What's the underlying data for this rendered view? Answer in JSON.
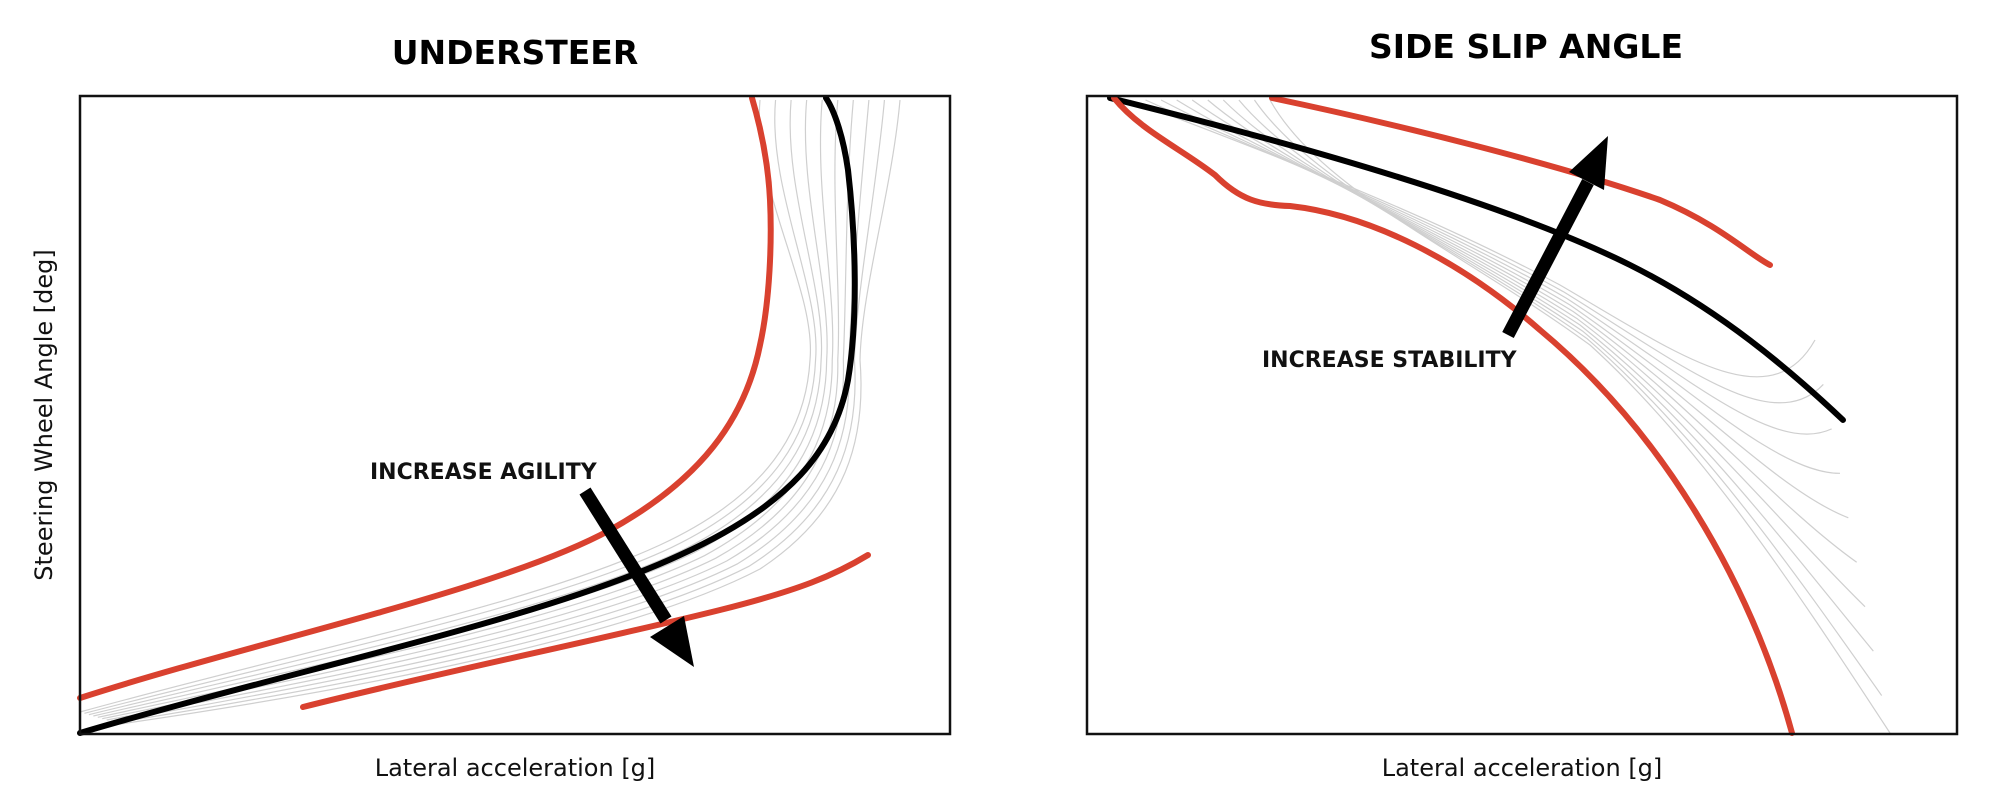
{
  "chart_data": [
    {
      "type": "line",
      "title": "UNDERSTEER",
      "xlabel": "Lateral acceleration [g]",
      "ylabel": "Steering Wheel Angle [deg]",
      "annotation": "INCREASE AGILITY",
      "series": [
        {
          "role": "upper-limit",
          "color": "#d9412f"
        },
        {
          "role": "reference",
          "color": "#000000"
        },
        {
          "role": "lower-limit",
          "color": "#d9412f"
        }
      ],
      "grid": false,
      "legend": false,
      "ticks": false
    },
    {
      "type": "line",
      "title": "SIDE SLIP ANGLE",
      "xlabel": "Lateral acceleration [g]",
      "ylabel": "",
      "annotation": "INCREASE STABILITY",
      "series": [
        {
          "role": "upper-limit",
          "color": "#d9412f"
        },
        {
          "role": "reference",
          "color": "#000000"
        },
        {
          "role": "lower-limit",
          "color": "#d9412f"
        }
      ],
      "grid": false,
      "legend": false,
      "ticks": false
    }
  ]
}
